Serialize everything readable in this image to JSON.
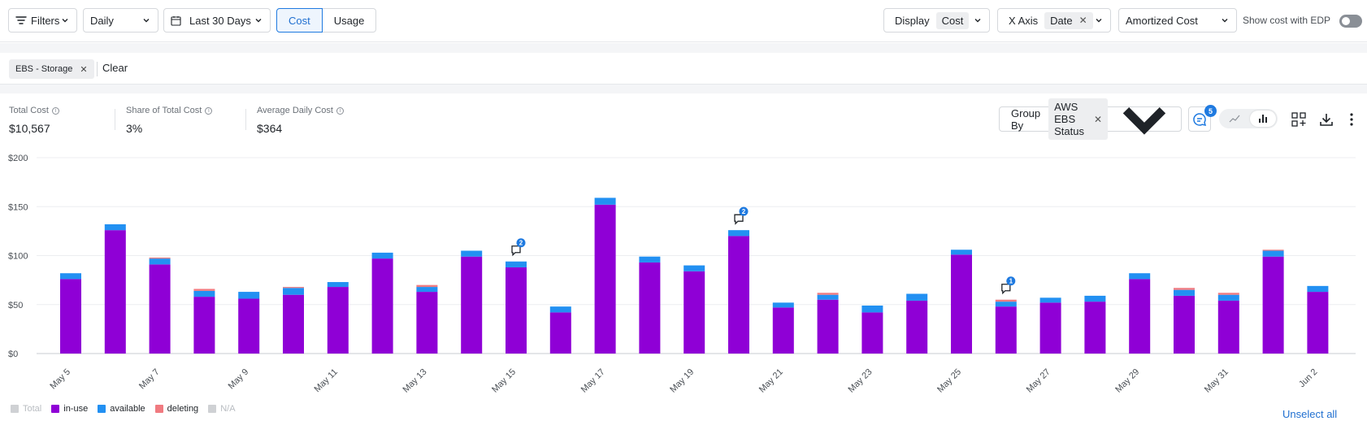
{
  "toolbar": {
    "filters_label": "Filters",
    "granularity": "Daily",
    "date_range": "Last 30 Days",
    "cost_tab": "Cost",
    "usage_tab": "Usage",
    "display_label": "Display",
    "display_value": "Cost",
    "xaxis_label": "X Axis",
    "xaxis_value": "Date",
    "cost_type": "Amortized Cost",
    "edp_label": "Show cost with EDP"
  },
  "filterbar": {
    "chip_label": "EBS - Storage",
    "clear_label": "Clear"
  },
  "stats": {
    "total_label": "Total Cost",
    "total_value": "$10,567",
    "share_label": "Share of Total Cost",
    "share_value": "3%",
    "avg_label": "Average Daily Cost",
    "avg_value": "$364"
  },
  "controls": {
    "groupby_label": "Group By",
    "groupby_value": "AWS EBS Status",
    "comments_count": "5"
  },
  "colors": {
    "in_use": "#8f00d6",
    "available": "#2290f2",
    "deleting": "#f07a80",
    "total": "#cfd1d4",
    "na": "#cfd1d4"
  },
  "chart_data": {
    "type": "bar",
    "stacked": true,
    "ylim": [
      0,
      200
    ],
    "yticks": [
      "$0",
      "$50",
      "$100",
      "$150",
      "$200"
    ],
    "categories": [
      "May 5",
      "May 6",
      "May 7",
      "May 8",
      "May 9",
      "May 10",
      "May 11",
      "May 12",
      "May 13",
      "May 14",
      "May 15",
      "May 16",
      "May 17",
      "May 18",
      "May 19",
      "May 20",
      "May 21",
      "May 22",
      "May 23",
      "May 24",
      "May 25",
      "May 26",
      "May 27",
      "May 28",
      "May 29",
      "May 30",
      "May 31",
      "Jun 1",
      "Jun 2"
    ],
    "xtick_labels": [
      "May 5",
      "",
      "May 7",
      "",
      "May 9",
      "",
      "May 11",
      "",
      "May 13",
      "",
      "May 15",
      "",
      "May 17",
      "",
      "May 19",
      "",
      "May 21",
      "",
      "May 23",
      "",
      "May 25",
      "",
      "May 27",
      "",
      "May 29",
      "",
      "May 31",
      "",
      "Jun 2"
    ],
    "series": [
      {
        "name": "in-use",
        "values": [
          76,
          126,
          91,
          58,
          56,
          60,
          68,
          97,
          63,
          99,
          88,
          42,
          152,
          93,
          84,
          120,
          47,
          55,
          42,
          54,
          101,
          48,
          52,
          53,
          76,
          59,
          54,
          99,
          63
        ]
      },
      {
        "name": "available",
        "values": [
          6,
          6,
          6,
          6,
          7,
          7,
          5,
          6,
          5,
          6,
          6,
          6,
          7,
          6,
          6,
          6,
          5,
          5,
          7,
          7,
          5,
          5,
          5,
          6,
          6,
          6,
          6,
          6,
          6
        ]
      },
      {
        "name": "deleting",
        "values": [
          0,
          0,
          1,
          2,
          0,
          1,
          0,
          0,
          2,
          0,
          0,
          0,
          0,
          0,
          0,
          0,
          0,
          2,
          0,
          0,
          0,
          2,
          0,
          0,
          0,
          2,
          2,
          1,
          0
        ]
      }
    ],
    "annotations": [
      {
        "category": "May 15",
        "count": "2"
      },
      {
        "category": "May 20",
        "count": "2"
      },
      {
        "category": "May 26",
        "count": "1"
      }
    ],
    "legend": [
      {
        "name": "Total",
        "color": "#cfd1d4",
        "active": false
      },
      {
        "name": "in-use",
        "color": "#8f00d6",
        "active": true
      },
      {
        "name": "available",
        "color": "#2290f2",
        "active": true
      },
      {
        "name": "deleting",
        "color": "#f07a80",
        "active": true
      },
      {
        "name": "N/A",
        "color": "#cfd1d4",
        "active": false
      }
    ],
    "unselect_label": "Unselect all"
  }
}
